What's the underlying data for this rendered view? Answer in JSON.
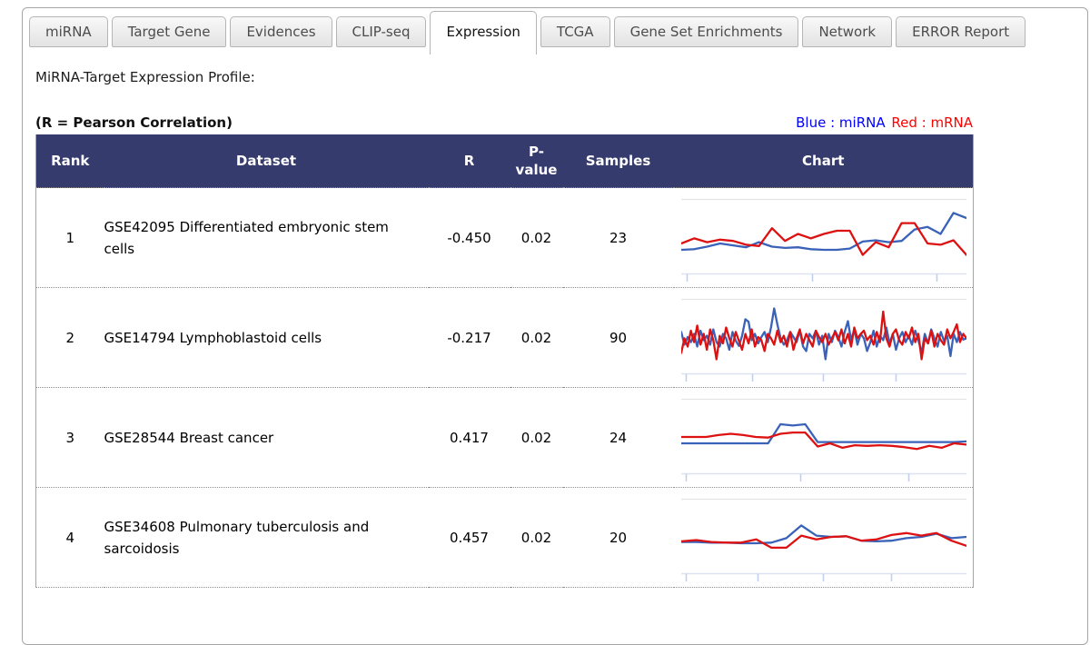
{
  "tabs": [
    {
      "label": "miRNA",
      "active": false
    },
    {
      "label": "Target Gene",
      "active": false
    },
    {
      "label": "Evidences",
      "active": false
    },
    {
      "label": "CLIP-seq",
      "active": false
    },
    {
      "label": "Expression",
      "active": true
    },
    {
      "label": "TCGA",
      "active": false
    },
    {
      "label": "Gene Set Enrichments",
      "active": false
    },
    {
      "label": "Network",
      "active": false
    },
    {
      "label": "ERROR Report",
      "active": false
    }
  ],
  "content": {
    "title": "MiRNA-Target Expression Profile:",
    "pearson_label": "(R = Pearson Correlation)"
  },
  "legend": {
    "blue_label": "Blue : miRNA",
    "red_label": "Red : mRNA",
    "blue_color": "#0000ff",
    "red_color": "#ff0000"
  },
  "colors": {
    "header_bg": "#353b6d",
    "border_gray": "#a6a6a6",
    "chart_blue": "#3a62b8",
    "chart_red": "#dd1111",
    "chart_topline": "#e4e4e4",
    "chart_axis": "#dce2f0",
    "chart_tick": "#c3d0ec"
  },
  "table": {
    "columns": [
      "Rank",
      "Dataset",
      "R",
      "P-value",
      "Samples",
      "Chart"
    ],
    "rows": [
      {
        "rank": "1",
        "dataset": "GSE42095 Differentiated embryonic stem cells",
        "r": "-0.450",
        "p_value": "0.02",
        "samples": "23"
      },
      {
        "rank": "2",
        "dataset": "GSE14794 Lymphoblastoid cells",
        "r": "-0.217",
        "p_value": "0.02",
        "samples": "90"
      },
      {
        "rank": "3",
        "dataset": "GSE28544 Breast cancer",
        "r": "0.417",
        "p_value": "0.02",
        "samples": "24"
      },
      {
        "rank": "4",
        "dataset": "GSE34608 Pulmonary tuberculosis and sarcoidosis",
        "r": "0.457",
        "p_value": "0.02",
        "samples": "20"
      }
    ]
  },
  "chart_data": [
    {
      "type": "line",
      "samples": 23,
      "axis_ticks": [
        0.02,
        0.46,
        0.9
      ],
      "series": [
        {
          "name": "miRNA",
          "color": "blue",
          "values": [
            0.3,
            0.31,
            0.35,
            0.4,
            0.37,
            0.34,
            0.42,
            0.35,
            0.33,
            0.34,
            0.31,
            0.3,
            0.3,
            0.32,
            0.43,
            0.45,
            0.42,
            0.44,
            0.62,
            0.66,
            0.55,
            0.88,
            0.8
          ]
        },
        {
          "name": "mRNA",
          "color": "red",
          "values": [
            0.4,
            0.48,
            0.42,
            0.46,
            0.44,
            0.38,
            0.36,
            0.64,
            0.44,
            0.55,
            0.48,
            0.55,
            0.6,
            0.6,
            0.22,
            0.42,
            0.34,
            0.72,
            0.72,
            0.4,
            0.38,
            0.45,
            0.22
          ]
        }
      ]
    },
    {
      "type": "line",
      "samples": 90,
      "axis_ticks": [
        0.015,
        0.25,
        0.5,
        0.755
      ],
      "series": [
        {
          "name": "miRNA",
          "color": "blue",
          "values": [
            0.58,
            0.38,
            0.5,
            0.42,
            0.55,
            0.35,
            0.6,
            0.45,
            0.52,
            0.38,
            0.62,
            0.42,
            0.35,
            0.55,
            0.48,
            0.3,
            0.58,
            0.44,
            0.36,
            0.52,
            0.78,
            0.74,
            0.45,
            0.55,
            0.4,
            0.5,
            0.58,
            0.42,
            0.65,
            0.95,
            0.7,
            0.48,
            0.38,
            0.45,
            0.58,
            0.5,
            0.42,
            0.6,
            0.35,
            0.28,
            0.55,
            0.48,
            0.6,
            0.38,
            0.52,
            0.15,
            0.55,
            0.42,
            0.6,
            0.5,
            0.35,
            0.58,
            0.75,
            0.45,
            0.62,
            0.38,
            0.55,
            0.48,
            0.28,
            0.42,
            0.6,
            0.35,
            0.52,
            0.45,
            0.65,
            0.4,
            0.55,
            0.3,
            0.48,
            0.58,
            0.42,
            0.52,
            0.38,
            0.6,
            0.45,
            0.25,
            0.55,
            0.4,
            0.62,
            0.48,
            0.35,
            0.58,
            0.44,
            0.52,
            0.2,
            0.55,
            0.42,
            0.58,
            0.46,
            0.48
          ]
        },
        {
          "name": "mRNA",
          "color": "red",
          "values": [
            0.25,
            0.48,
            0.35,
            0.6,
            0.42,
            0.68,
            0.38,
            0.55,
            0.3,
            0.62,
            0.45,
            0.15,
            0.52,
            0.4,
            0.65,
            0.48,
            0.35,
            0.58,
            0.44,
            0.3,
            0.55,
            0.4,
            0.62,
            0.35,
            0.5,
            0.45,
            0.28,
            0.55,
            0.48,
            0.38,
            0.6,
            0.42,
            0.52,
            0.35,
            0.58,
            0.3,
            0.48,
            0.62,
            0.4,
            0.55,
            0.45,
            0.35,
            0.6,
            0.5,
            0.42,
            0.55,
            0.38,
            0.48,
            0.58,
            0.45,
            0.62,
            0.4,
            0.55,
            0.35,
            0.65,
            0.48,
            0.55,
            0.6,
            0.45,
            0.52,
            0.38,
            0.58,
            0.42,
            0.9,
            0.48,
            0.35,
            0.55,
            0.62,
            0.45,
            0.38,
            0.58,
            0.48,
            0.65,
            0.42,
            0.55,
            0.15,
            0.48,
            0.4,
            0.6,
            0.35,
            0.55,
            0.45,
            0.38,
            0.62,
            0.48,
            0.58,
            0.7,
            0.42,
            0.55,
            0.48
          ]
        }
      ]
    },
    {
      "type": "line",
      "samples": 24,
      "axis_ticks": [
        0.015,
        0.42,
        0.8
      ],
      "series": [
        {
          "name": "miRNA",
          "color": "blue",
          "values": [
            0.4,
            0.4,
            0.4,
            0.4,
            0.4,
            0.4,
            0.4,
            0.4,
            0.7,
            0.68,
            0.7,
            0.42,
            0.42,
            0.42,
            0.42,
            0.42,
            0.42,
            0.42,
            0.42,
            0.42,
            0.42,
            0.42,
            0.42,
            0.43
          ]
        },
        {
          "name": "mRNA",
          "color": "red",
          "values": [
            0.5,
            0.5,
            0.5,
            0.53,
            0.55,
            0.53,
            0.5,
            0.49,
            0.55,
            0.57,
            0.57,
            0.35,
            0.4,
            0.33,
            0.37,
            0.36,
            0.37,
            0.36,
            0.34,
            0.31,
            0.36,
            0.33,
            0.4,
            0.38
          ]
        }
      ]
    },
    {
      "type": "line",
      "samples": 20,
      "axis_ticks": [
        0.015,
        0.27,
        0.5,
        0.74
      ],
      "series": [
        {
          "name": "miRNA",
          "color": "blue",
          "values": [
            0.42,
            0.42,
            0.41,
            0.41,
            0.4,
            0.4,
            0.41,
            0.48,
            0.68,
            0.52,
            0.5,
            0.51,
            0.44,
            0.43,
            0.44,
            0.48,
            0.5,
            0.55,
            0.48,
            0.5
          ]
        },
        {
          "name": "mRNA",
          "color": "red",
          "values": [
            0.43,
            0.45,
            0.42,
            0.41,
            0.41,
            0.46,
            0.33,
            0.33,
            0.52,
            0.46,
            0.5,
            0.51,
            0.44,
            0.46,
            0.53,
            0.56,
            0.52,
            0.56,
            0.44,
            0.36
          ]
        }
      ]
    }
  ]
}
